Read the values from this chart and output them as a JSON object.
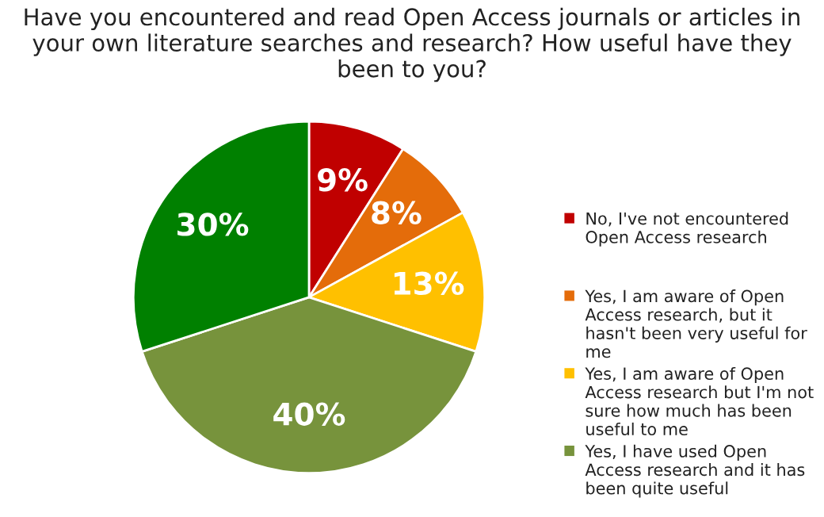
{
  "chart_data": {
    "type": "pie",
    "title": "Have you encountered and read Open Access journals or articles in your own literature searches and research? How useful have they been to you?",
    "categories": [
      "No, I've not encountered Open Access research",
      "Yes, I am aware of Open Access research, but it hasn't been very useful for me",
      "Yes, I am aware of Open Access research but I'm not sure how much has been useful to me",
      "Yes, I have used Open Access research and it has been quite useful",
      null
    ],
    "values": [
      9,
      8,
      13,
      40,
      30
    ],
    "value_labels": [
      "9%",
      "8%",
      "13%",
      "40%",
      "30%"
    ],
    "colors": [
      "#c00000",
      "#e46c0a",
      "#ffc000",
      "#77933c",
      "#008000"
    ],
    "legend": "right"
  }
}
